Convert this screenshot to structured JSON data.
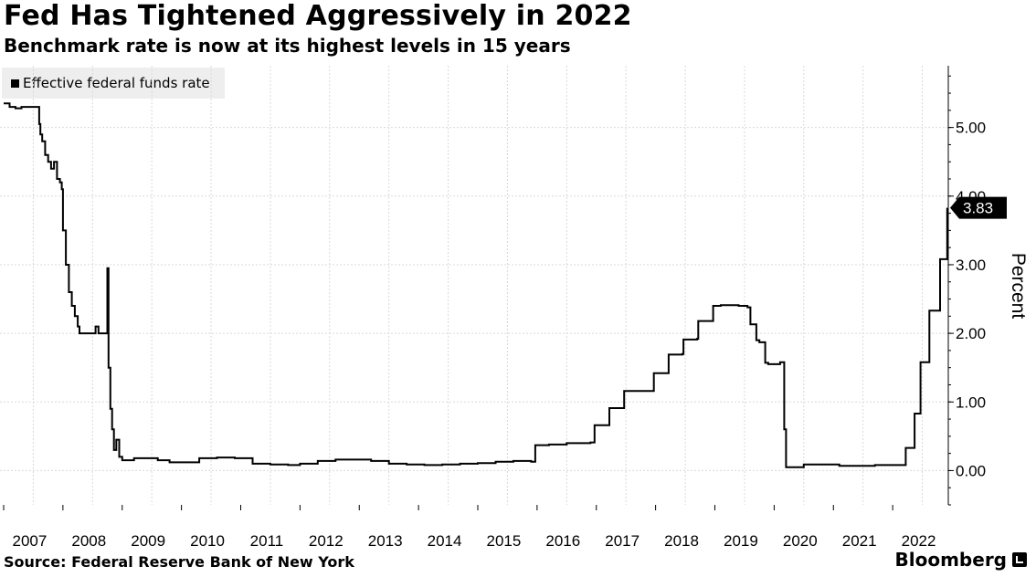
{
  "header": {
    "title": "Fed Has Tightened Aggressively in 2022",
    "subtitle": "Benchmark rate is now at its highest levels in 15 years"
  },
  "footer": {
    "source": "Source: Federal Reserve Bank of New York",
    "brand": "Bloomberg"
  },
  "chart_data": {
    "type": "line",
    "title": "Fed Has Tightened Aggressively in 2022",
    "subtitle": "Benchmark rate is now at its highest levels in 15 years",
    "xlabel": "",
    "ylabel": "Percent",
    "y_axis_side": "right",
    "xlim": [
      2007.0,
      2023.0
    ],
    "ylim": [
      -0.5,
      5.9
    ],
    "x_tick_labels": [
      "2007",
      "2008",
      "2009",
      "2010",
      "2011",
      "2012",
      "2013",
      "2014",
      "2015",
      "2016",
      "2017",
      "2018",
      "2019",
      "2020",
      "2021",
      "2022"
    ],
    "y_tick_labels": [
      "0.00",
      "1.00",
      "2.00",
      "3.00",
      "4.00",
      "5.00"
    ],
    "y_ticks": [
      0,
      1,
      2,
      3,
      4,
      5
    ],
    "grid": true,
    "legend_position": "top-left",
    "line_color": "#000000",
    "last_value_label": "3.83",
    "series": [
      {
        "name": "Effective federal funds rate",
        "x": [
          2007.0,
          2007.1,
          2007.2,
          2007.3,
          2007.45,
          2007.55,
          2007.6,
          2007.62,
          2007.65,
          2007.7,
          2007.75,
          2007.8,
          2007.85,
          2007.9,
          2007.95,
          2007.98,
          2008.0,
          2008.05,
          2008.1,
          2008.15,
          2008.2,
          2008.25,
          2008.28,
          2008.35,
          2008.4,
          2008.5,
          2008.55,
          2008.6,
          2008.7,
          2008.75,
          2008.77,
          2008.8,
          2008.83,
          2008.86,
          2008.9,
          2008.95,
          2009.0,
          2009.2,
          2009.4,
          2009.6,
          2009.8,
          2010.0,
          2010.3,
          2010.6,
          2010.9,
          2011.2,
          2011.5,
          2011.8,
          2012.0,
          2012.3,
          2012.6,
          2012.9,
          2013.2,
          2013.5,
          2013.8,
          2014.1,
          2014.4,
          2014.7,
          2015.0,
          2015.3,
          2015.6,
          2015.9,
          2015.97,
          2016.2,
          2016.5,
          2016.9,
          2016.97,
          2017.2,
          2017.22,
          2017.4,
          2017.47,
          2017.9,
          2017.97,
          2018.2,
          2018.22,
          2018.45,
          2018.47,
          2018.7,
          2018.72,
          2018.97,
          2019.1,
          2019.4,
          2019.55,
          2019.6,
          2019.7,
          2019.75,
          2019.85,
          2019.9,
          2020.0,
          2020.1,
          2020.17,
          2020.2,
          2020.5,
          2020.8,
          2021.1,
          2021.4,
          2021.7,
          2022.0,
          2022.2,
          2022.22,
          2022.35,
          2022.37,
          2022.45,
          2022.47,
          2022.6,
          2022.62,
          2022.78,
          2022.8,
          2022.9,
          2022.92
        ],
        "values": [
          5.35,
          5.3,
          5.28,
          5.3,
          5.3,
          5.3,
          5.05,
          4.9,
          4.8,
          4.6,
          4.5,
          4.4,
          4.5,
          4.25,
          4.2,
          4.1,
          3.5,
          3.0,
          2.6,
          2.4,
          2.25,
          2.1,
          2.0,
          2.0,
          2.0,
          2.0,
          2.1,
          2.0,
          2.0,
          2.95,
          1.5,
          0.9,
          0.6,
          0.3,
          0.45,
          0.2,
          0.15,
          0.18,
          0.18,
          0.15,
          0.12,
          0.12,
          0.18,
          0.19,
          0.18,
          0.1,
          0.09,
          0.08,
          0.1,
          0.14,
          0.16,
          0.16,
          0.14,
          0.1,
          0.09,
          0.08,
          0.09,
          0.1,
          0.11,
          0.13,
          0.14,
          0.13,
          0.37,
          0.38,
          0.4,
          0.41,
          0.66,
          0.66,
          0.91,
          0.91,
          1.16,
          1.16,
          1.42,
          1.42,
          1.69,
          1.7,
          1.91,
          1.92,
          2.18,
          2.4,
          2.41,
          2.4,
          2.38,
          2.13,
          1.9,
          1.87,
          1.57,
          1.55,
          1.55,
          1.58,
          0.6,
          0.05,
          0.09,
          0.09,
          0.07,
          0.07,
          0.08,
          0.08,
          0.08,
          0.33,
          0.33,
          0.83,
          0.83,
          1.58,
          1.58,
          2.33,
          2.33,
          3.08,
          3.08,
          3.83
        ]
      }
    ]
  }
}
